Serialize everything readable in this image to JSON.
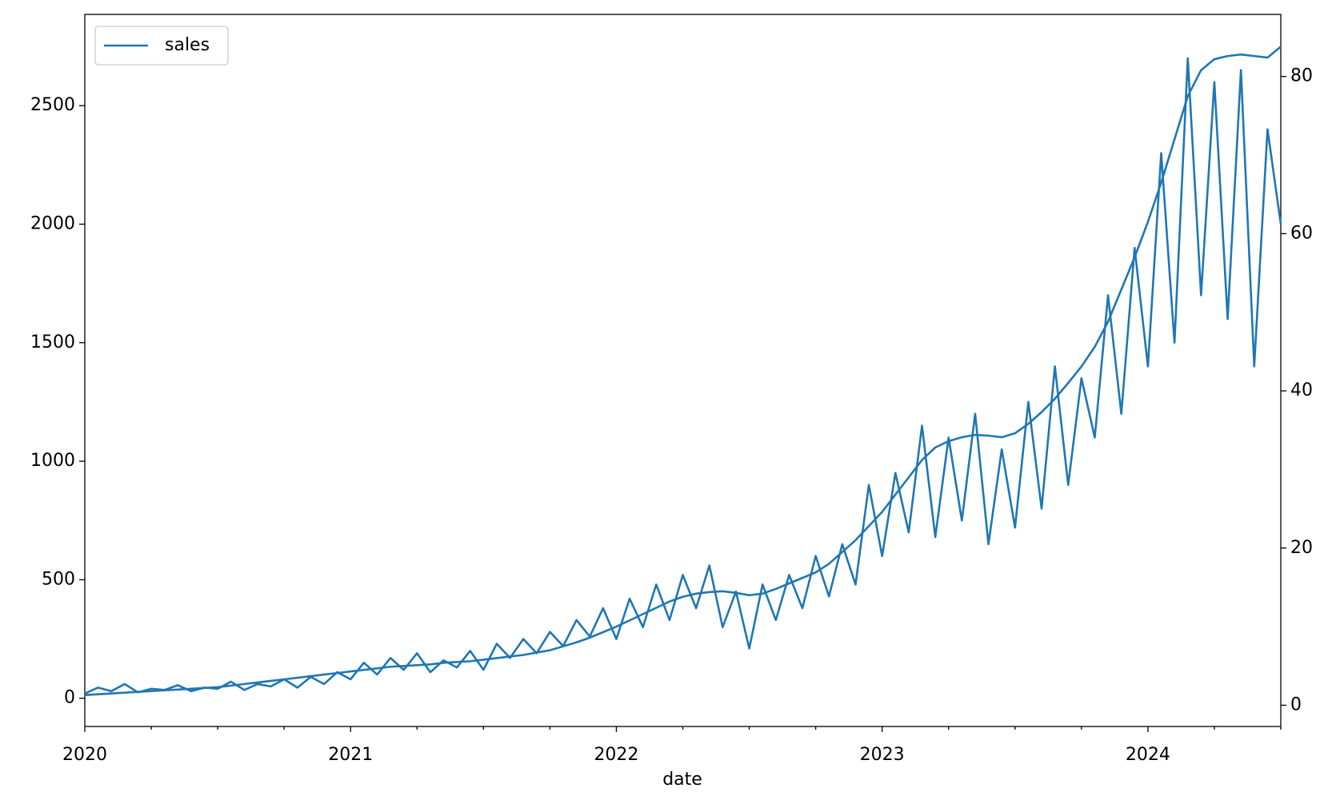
{
  "chart_data": {
    "type": "line",
    "x_label": "date",
    "x": [
      2020,
      2020.05,
      2020.1,
      2020.15,
      2020.2,
      2020.25,
      2020.3,
      2020.35,
      2020.4,
      2020.45,
      2020.5,
      2020.55,
      2020.6,
      2020.65,
      2020.7,
      2020.75,
      2020.8,
      2020.85,
      2020.9,
      2020.95,
      2021,
      2021.05,
      2021.1,
      2021.15,
      2021.2,
      2021.25,
      2021.3,
      2021.35,
      2021.4,
      2021.45,
      2021.5,
      2021.55,
      2021.6,
      2021.65,
      2021.7,
      2021.75,
      2021.8,
      2021.85,
      2021.9,
      2021.95,
      2022,
      2022.05,
      2022.1,
      2022.15,
      2022.2,
      2022.25,
      2022.3,
      2022.35,
      2022.4,
      2022.45,
      2022.5,
      2022.55,
      2022.6,
      2022.65,
      2022.7,
      2022.75,
      2022.8,
      2022.85,
      2022.9,
      2022.95,
      2023,
      2023.05,
      2023.1,
      2023.15,
      2023.2,
      2023.25,
      2023.3,
      2023.35,
      2023.4,
      2023.45,
      2023.5,
      2023.55,
      2023.6,
      2023.65,
      2023.7,
      2023.75,
      2023.8,
      2023.85,
      2023.9,
      2023.95,
      2024,
      2024.05,
      2024.1,
      2024.15,
      2024.2,
      2024.25,
      2024.3,
      2024.35,
      2024.4,
      2024.45,
      2024.5
    ],
    "series": [
      {
        "name": "sales",
        "color": "#1f77b4",
        "values": [
          20,
          45,
          30,
          60,
          25,
          40,
          35,
          55,
          30,
          45,
          40,
          70,
          35,
          60,
          50,
          80,
          45,
          90,
          60,
          110,
          80,
          150,
          100,
          170,
          120,
          190,
          110,
          160,
          130,
          200,
          120,
          230,
          170,
          250,
          190,
          280,
          220,
          330,
          260,
          380,
          250,
          420,
          300,
          480,
          330,
          520,
          380,
          560,
          300,
          450,
          210,
          480,
          330,
          520,
          380,
          600,
          430,
          650,
          480,
          900,
          600,
          950,
          700,
          1150,
          680,
          1100,
          750,
          1200,
          650,
          1050,
          720,
          1250,
          800,
          1400,
          900,
          1350,
          1100,
          1700,
          1200,
          1900,
          1400,
          2300,
          1500,
          2700,
          1700,
          2600,
          1600,
          2650,
          1400,
          2400,
          2000
        ]
      },
      {
        "color": "#1f77b4",
        "axis": "y2",
        "values": [
          1.3,
          1.4,
          1.5,
          1.6,
          1.7,
          1.8,
          1.9,
          2.0,
          2.1,
          2.2,
          2.3,
          2.5,
          2.7,
          2.9,
          3.1,
          3.3,
          3.5,
          3.7,
          3.9,
          4.1,
          4.3,
          4.5,
          4.7,
          4.9,
          5.0,
          5.1,
          5.2,
          5.4,
          5.5,
          5.6,
          5.8,
          6.0,
          6.2,
          6.4,
          6.7,
          7.0,
          7.5,
          8.0,
          8.6,
          9.3,
          10.0,
          10.8,
          11.6,
          12.4,
          13.2,
          13.8,
          14.2,
          14.4,
          14.5,
          14.3,
          14.0,
          14.2,
          14.8,
          15.5,
          16.2,
          16.9,
          18.0,
          19.5,
          21.0,
          22.8,
          24.6,
          26.8,
          29.0,
          31.2,
          32.8,
          33.6,
          34.1,
          34.4,
          34.3,
          34.1,
          34.6,
          35.8,
          37.3,
          39.0,
          41.0,
          43.1,
          45.6,
          48.8,
          52.9,
          57.0,
          61.5,
          66.5,
          72.0,
          77.5,
          80.8,
          82.2,
          82.6,
          82.8,
          82.6,
          82.4,
          83.8
        ]
      }
    ],
    "xlim": [
      2020,
      2024.5
    ],
    "xticks": [
      2020,
      2021,
      2022,
      2023,
      2024
    ],
    "xminorticks": [
      2020.25,
      2020.5,
      2020.75,
      2021.25,
      2021.5,
      2021.75,
      2022.25,
      2022.5,
      2022.75,
      2023.25,
      2023.5,
      2023.75,
      2024.25,
      2024.5
    ],
    "ylim": [
      -119,
      2885
    ],
    "yticks": [
      0,
      500,
      1000,
      1500,
      2000,
      2500
    ],
    "y2lim": [
      -2.7,
      87.9
    ],
    "y2ticks": [
      0,
      20,
      40,
      60,
      80
    ],
    "legend": "upper left"
  }
}
